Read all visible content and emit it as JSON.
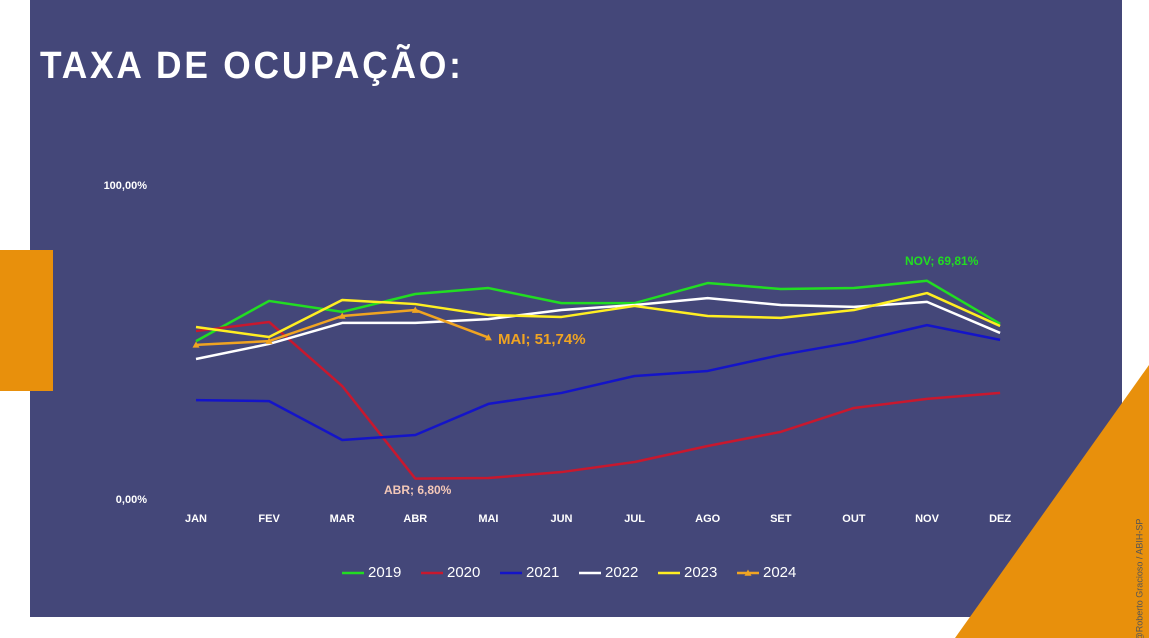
{
  "chart_data": {
    "type": "line",
    "title": "TAXA DE OCUPAÇÃO:",
    "categories": [
      "JAN",
      "FEV",
      "MAR",
      "ABR",
      "MAI",
      "JUN",
      "JUL",
      "AGO",
      "SET",
      "OUT",
      "NOV",
      "DEZ"
    ],
    "ylim": [
      0,
      100
    ],
    "yticks": [
      {
        "value": 0,
        "label": "0,00%"
      },
      {
        "value": 100,
        "label": "100,00%"
      }
    ],
    "grid": false,
    "legend": "bottom",
    "series": [
      {
        "name": "2019",
        "color": "#22dd22",
        "values": [
          50.6,
          63.4,
          59.9,
          65.6,
          67.5,
          62.7,
          62.7,
          69.1,
          67.2,
          67.5,
          69.81,
          56.1
        ]
      },
      {
        "name": "2020",
        "color": "#c8182e",
        "values": [
          53.8,
          56.7,
          36.3,
          6.8,
          7.0,
          8.9,
          12.1,
          17.2,
          21.7,
          29.3,
          32.2,
          34.1
        ]
      },
      {
        "name": "2021",
        "color": "#1414c8",
        "values": [
          31.8,
          31.5,
          19.1,
          20.7,
          30.6,
          34.1,
          39.5,
          41.1,
          46.2,
          50.3,
          55.7,
          51.0
        ]
      },
      {
        "name": "2022",
        "color": "#ffffff",
        "values": [
          44.9,
          49.7,
          56.4,
          56.4,
          57.6,
          60.5,
          62.1,
          64.3,
          62.1,
          61.5,
          63.1,
          53.2
        ]
      },
      {
        "name": "2023",
        "color": "#ffee22",
        "values": [
          55.1,
          51.9,
          63.7,
          62.4,
          58.9,
          58.3,
          61.8,
          58.6,
          58.0,
          60.5,
          65.9,
          55.4
        ]
      },
      {
        "name": "2024",
        "color": "#f0a422",
        "marker": "triangle",
        "values": [
          49.4,
          50.6,
          58.6,
          60.5,
          51.74,
          null,
          null,
          null,
          null,
          null,
          null,
          null
        ]
      }
    ],
    "annotations": [
      {
        "text": "NOV; 69,81%",
        "color": "#22dd22"
      },
      {
        "text": "ABR; 6,80%",
        "color": "#f4c8b8"
      },
      {
        "text": "MAI; 51,74%",
        "color": "#f0a422"
      }
    ]
  },
  "credit": "@Roberto Gracioso / ABIH-SP"
}
